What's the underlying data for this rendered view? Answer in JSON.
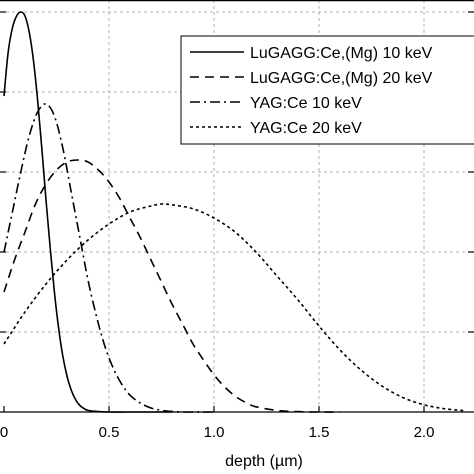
{
  "chart_data": {
    "type": "line",
    "xlabel": "depth (µm)",
    "ylabel": "",
    "xlim": [
      -0.02,
      2.22
    ],
    "ylim": [
      0,
      1.0
    ],
    "x_ticks": [
      0.0,
      0.5,
      1.0,
      1.5,
      2.0
    ],
    "x_tick_labels": [
      "0",
      "0.5",
      "1.0",
      "1.5",
      "2.0"
    ],
    "y_ticks": [
      0.2,
      0.4,
      0.6,
      0.8,
      1.0
    ],
    "grid": true,
    "legend_position": "top-right",
    "series": [
      {
        "name": "LuGAGG:Ce,(Mg) 10 keV",
        "style": "solid",
        "x": [
          0.0,
          0.02,
          0.04,
          0.06,
          0.08,
          0.1,
          0.12,
          0.14,
          0.16,
          0.18,
          0.2,
          0.22,
          0.24,
          0.26,
          0.28,
          0.3,
          0.32,
          0.34,
          0.36,
          0.38,
          0.4,
          0.45,
          0.5,
          0.6,
          0.8
        ],
        "y": [
          0.79,
          0.9,
          0.96,
          0.99,
          1.0,
          0.99,
          0.95,
          0.88,
          0.78,
          0.66,
          0.53,
          0.41,
          0.3,
          0.21,
          0.14,
          0.09,
          0.055,
          0.032,
          0.017,
          0.009,
          0.004,
          0.001,
          0.0,
          0.0,
          0.0
        ]
      },
      {
        "name": "LuGAGG:Ce,(Mg) 20 keV",
        "style": "dashed",
        "x": [
          0.0,
          0.05,
          0.1,
          0.15,
          0.2,
          0.25,
          0.3,
          0.35,
          0.4,
          0.45,
          0.5,
          0.55,
          0.6,
          0.65,
          0.7,
          0.75,
          0.8,
          0.85,
          0.9,
          0.95,
          1.0,
          1.05,
          1.1,
          1.15,
          1.2,
          1.3,
          1.4,
          1.5,
          1.6
        ],
        "y": [
          0.3,
          0.38,
          0.45,
          0.52,
          0.57,
          0.605,
          0.625,
          0.63,
          0.625,
          0.605,
          0.575,
          0.535,
          0.485,
          0.435,
          0.38,
          0.325,
          0.27,
          0.22,
          0.17,
          0.13,
          0.093,
          0.063,
          0.04,
          0.024,
          0.013,
          0.004,
          0.001,
          0.0,
          0.0
        ]
      },
      {
        "name": "YAG:Ce 10 keV",
        "style": "dashdot",
        "x": [
          0.0,
          0.04,
          0.08,
          0.12,
          0.16,
          0.2,
          0.24,
          0.28,
          0.32,
          0.36,
          0.4,
          0.44,
          0.48,
          0.52,
          0.56,
          0.6,
          0.65,
          0.7,
          0.75,
          0.8,
          0.85,
          1.0
        ],
        "y": [
          0.4,
          0.5,
          0.6,
          0.69,
          0.75,
          0.77,
          0.74,
          0.66,
          0.55,
          0.44,
          0.33,
          0.24,
          0.165,
          0.11,
          0.07,
          0.042,
          0.022,
          0.01,
          0.004,
          0.0015,
          0.0,
          0.0
        ]
      },
      {
        "name": "YAG:Ce 20 keV",
        "style": "dotted",
        "x": [
          0.0,
          0.1,
          0.2,
          0.3,
          0.4,
          0.5,
          0.6,
          0.7,
          0.75,
          0.8,
          0.9,
          1.0,
          1.1,
          1.2,
          1.3,
          1.4,
          1.5,
          1.6,
          1.7,
          1.8,
          1.9,
          2.0,
          2.1,
          2.2
        ],
        "y": [
          0.17,
          0.25,
          0.32,
          0.38,
          0.43,
          0.47,
          0.5,
          0.515,
          0.52,
          0.518,
          0.508,
          0.485,
          0.45,
          0.4,
          0.34,
          0.28,
          0.215,
          0.155,
          0.105,
          0.065,
          0.036,
          0.018,
          0.008,
          0.003
        ]
      }
    ]
  }
}
